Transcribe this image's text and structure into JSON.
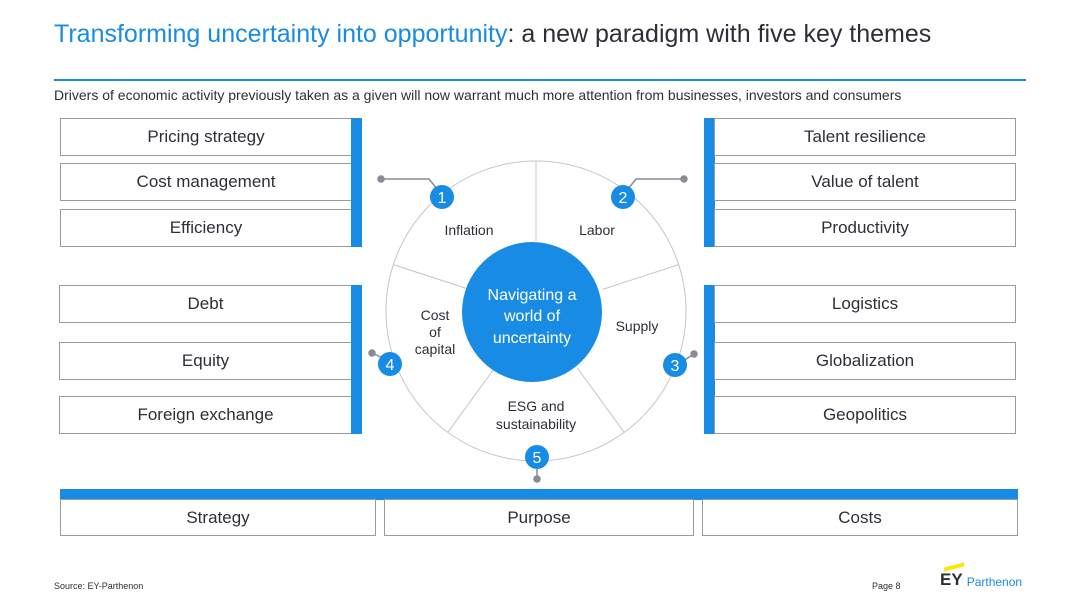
{
  "header": {
    "title_highlight": "Transforming uncertainty into opportunity",
    "title_rest": ": a new paradigm with five key themes",
    "subtitle": "Drivers of economic activity previously taken as a given will now warrant much more attention from businesses, investors and consumers"
  },
  "left_top_boxes": [
    "Pricing strategy",
    "Cost management",
    "Efficiency"
  ],
  "left_bottom_boxes": [
    "Debt",
    "Equity",
    "Foreign exchange"
  ],
  "right_top_boxes": [
    "Talent resilience",
    "Value of talent",
    "Productivity"
  ],
  "right_bottom_boxes": [
    "Logistics",
    "Globalization",
    "Geopolitics"
  ],
  "bottom_boxes": [
    "Strategy",
    "Purpose",
    "Costs"
  ],
  "wheel": {
    "center_lines": [
      "Navigating a",
      "world of",
      "uncertainty"
    ],
    "segments": [
      {
        "number": "1",
        "lines": [
          "Inflation"
        ]
      },
      {
        "number": "2",
        "lines": [
          "Labor"
        ]
      },
      {
        "number": "3",
        "lines": [
          "Supply"
        ]
      },
      {
        "number": "4",
        "lines": [
          "Cost",
          "of",
          "capital"
        ]
      },
      {
        "number": "5",
        "lines": [
          "ESG and",
          "sustainability"
        ]
      }
    ]
  },
  "colors": {
    "accent": "#188ce5",
    "text": "#2e2e38",
    "border": "#9a9aa4",
    "logo_beam": "#ffe600"
  },
  "footer": {
    "source": "Source: EY-Parthenon",
    "page": "Page 8",
    "logo_ey": "EY",
    "logo_parthenon": "Parthenon"
  }
}
